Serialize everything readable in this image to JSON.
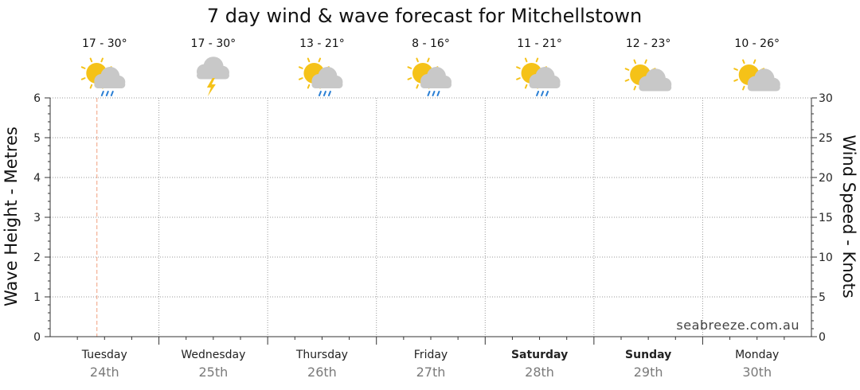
{
  "chart_data": {
    "type": "line",
    "title": "7 day wind & wave forecast for Mitchellstown",
    "y_left_label": "Wave Height - Metres",
    "y_right_label": "Wind Speed - Knots",
    "y_left_range": [
      0,
      6
    ],
    "y_right_range": [
      0,
      30
    ],
    "y_left_ticks": [
      "0",
      "1",
      "2",
      "3",
      "4",
      "5",
      "6"
    ],
    "y_right_ticks": [
      "0",
      "5",
      "10",
      "15",
      "20",
      "25",
      "30"
    ],
    "grid": true,
    "days": [
      {
        "day": "Tuesday",
        "date": "24th",
        "temp": "17 - 30°",
        "weather": "partly-cloudy-showers-icon",
        "bold": false
      },
      {
        "day": "Wednesday",
        "date": "25th",
        "temp": "17 - 30°",
        "weather": "thunderstorm-icon",
        "bold": false
      },
      {
        "day": "Thursday",
        "date": "26th",
        "temp": "13 - 21°",
        "weather": "partly-cloudy-showers-icon",
        "bold": false
      },
      {
        "day": "Friday",
        "date": "27th",
        "temp": "8 - 16°",
        "weather": "partly-cloudy-showers-icon",
        "bold": false
      },
      {
        "day": "Saturday",
        "date": "28th",
        "temp": "11 - 21°",
        "weather": "partly-cloudy-showers-icon",
        "bold": true
      },
      {
        "day": "Sunday",
        "date": "29th",
        "temp": "12 - 23°",
        "weather": "partly-cloudy-icon",
        "bold": true
      },
      {
        "day": "Monday",
        "date": "30th",
        "temp": "10 - 26°",
        "weather": "partly-cloudy-icon",
        "bold": false
      }
    ],
    "series": [],
    "current_time_marker_day": 0.5,
    "watermark": "seabreeze.com.au",
    "colors": {
      "sun": "#f5c218",
      "cloud": "#c8c8c8",
      "rain": "#2a7fd4",
      "lightning": "#f5c218",
      "grid": "#9a9a9a",
      "now_marker": "#f0a080"
    }
  }
}
